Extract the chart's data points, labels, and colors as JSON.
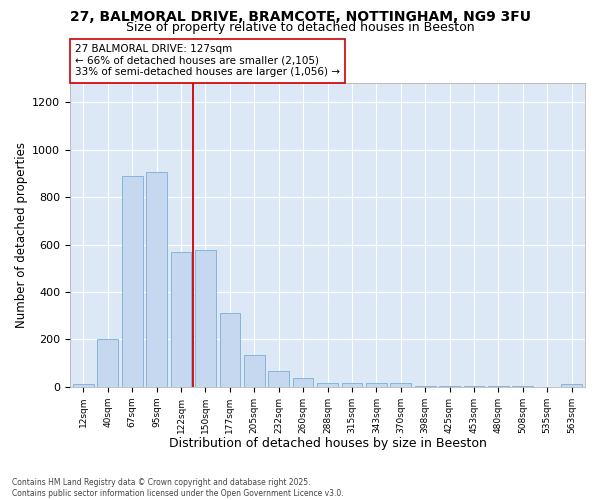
{
  "title1": "27, BALMORAL DRIVE, BRAMCOTE, NOTTINGHAM, NG9 3FU",
  "title2": "Size of property relative to detached houses in Beeston",
  "xlabel": "Distribution of detached houses by size in Beeston",
  "ylabel": "Number of detached properties",
  "categories": [
    "12sqm",
    "40sqm",
    "67sqm",
    "95sqm",
    "122sqm",
    "150sqm",
    "177sqm",
    "205sqm",
    "232sqm",
    "260sqm",
    "288sqm",
    "315sqm",
    "343sqm",
    "370sqm",
    "398sqm",
    "425sqm",
    "453sqm",
    "480sqm",
    "508sqm",
    "535sqm",
    "563sqm"
  ],
  "bar_heights": [
    10,
    200,
    890,
    905,
    570,
    575,
    310,
    135,
    65,
    35,
    15,
    15,
    15,
    15,
    5,
    5,
    5,
    5,
    5,
    0,
    10
  ],
  "bar_color": "#c5d8f0",
  "bar_edge_color": "#7aafd4",
  "vline_pos": 4.5,
  "vline_color": "#cc0000",
  "annotation_text": "27 BALMORAL DRIVE: 127sqm\n← 66% of detached houses are smaller (2,105)\n33% of semi-detached houses are larger (1,056) →",
  "ylim": [
    0,
    1280
  ],
  "yticks": [
    0,
    200,
    400,
    600,
    800,
    1000,
    1200
  ],
  "bg_color": "#dce8f5",
  "grid_color": "white",
  "footer": "Contains HM Land Registry data © Crown copyright and database right 2025.\nContains public sector information licensed under the Open Government Licence v3.0."
}
